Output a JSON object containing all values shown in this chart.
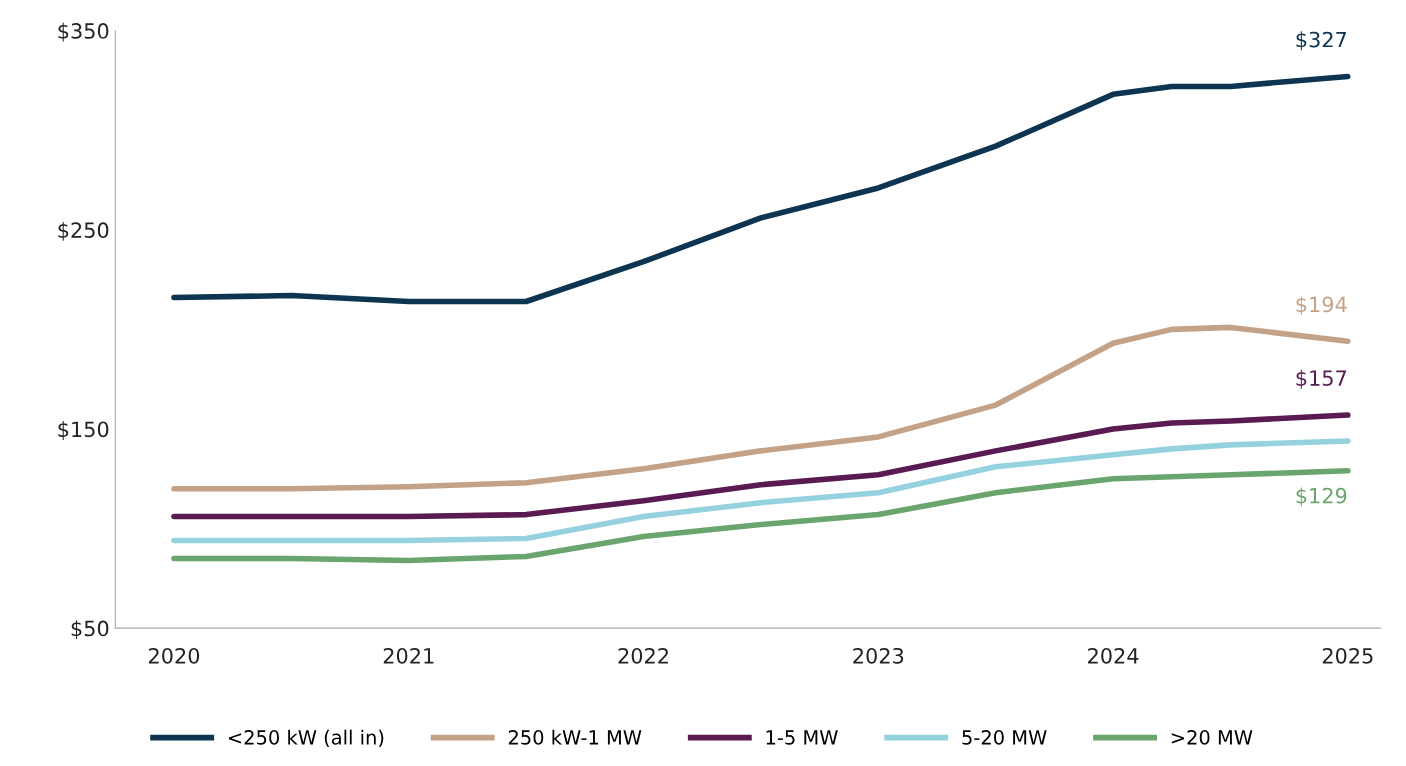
{
  "chart_data": {
    "type": "line",
    "x": [
      2020,
      2020.5,
      2021,
      2021.5,
      2022,
      2022.5,
      2023,
      2023.5,
      2024,
      2024.25,
      2024.5,
      2025
    ],
    "series": [
      {
        "name": "<250 kW (all in)",
        "color": "#0d3551",
        "values": [
          216,
          217,
          214,
          214,
          234,
          256,
          271,
          292,
          318,
          322,
          322,
          327
        ],
        "value_labels": [
          null,
          null,
          null,
          null,
          null,
          null,
          null,
          null,
          null,
          null,
          null,
          "$327"
        ]
      },
      {
        "name": "250 kW-1 MW",
        "color": "#c4a287",
        "values": [
          120,
          120,
          121,
          123,
          130,
          139,
          146,
          162,
          193,
          200,
          201,
          194
        ],
        "value_labels": [
          null,
          null,
          null,
          null,
          null,
          null,
          null,
          null,
          null,
          null,
          null,
          "$194"
        ]
      },
      {
        "name": "1-5 MW",
        "color": "#5a1a52",
        "values": [
          106,
          106,
          106,
          107,
          114,
          122,
          127,
          139,
          150,
          153,
          154,
          157
        ],
        "value_labels": [
          null,
          null,
          null,
          null,
          null,
          null,
          null,
          null,
          null,
          null,
          null,
          "$157"
        ]
      },
      {
        "name": "5-20 MW",
        "color": "#96d1e0",
        "values": [
          94,
          94,
          94,
          95,
          106,
          113,
          118,
          131,
          137,
          140,
          142,
          144
        ]
      },
      {
        "name": ">20 MW",
        "color": "#6aa56e",
        "values": [
          85,
          85,
          84,
          86,
          96,
          102,
          107,
          118,
          125,
          126,
          127,
          129
        ],
        "value_labels": [
          null,
          null,
          null,
          null,
          null,
          null,
          null,
          null,
          null,
          null,
          null,
          "$129"
        ]
      }
    ],
    "xlim": [
      2019.75,
      2025.14
    ],
    "xticks": [
      2020,
      2021,
      2022,
      2023,
      2024,
      2025
    ],
    "ylim": [
      50,
      350
    ],
    "yticks": [
      {
        "value": 50,
        "label": "$50"
      },
      {
        "value": 150,
        "label": "$150"
      },
      {
        "value": 250,
        "label": "$250"
      },
      {
        "value": 350,
        "label": "$350"
      }
    ],
    "grid": false,
    "legend": "bottom",
    "line_style": "solid",
    "marker": "none"
  }
}
